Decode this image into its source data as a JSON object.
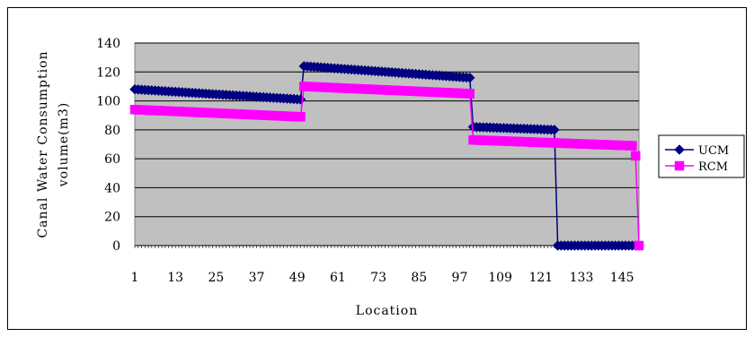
{
  "chart_data": {
    "type": "line",
    "title": "",
    "xlabel": "Location",
    "ylabel_lines": [
      "Canal Water Consumption",
      "volume(m3)"
    ],
    "ylim": [
      0,
      140
    ],
    "y_ticks": [
      0,
      20,
      40,
      60,
      80,
      100,
      120,
      140
    ],
    "xlim": [
      1,
      150
    ],
    "x_ticks": [
      1,
      13,
      25,
      37,
      49,
      61,
      73,
      85,
      97,
      109,
      121,
      133,
      145
    ],
    "grid": "horizontal",
    "plot_background": "#C0C0C0",
    "legend_position": "right",
    "series": [
      {
        "name": "UCM",
        "color": "#000080",
        "marker": "diamond",
        "segments": [
          {
            "x_start": 1,
            "x_end": 50,
            "y_start": 108,
            "y_end": 101
          },
          {
            "x_start": 51,
            "x_end": 100,
            "y_start": 124,
            "y_end": 116
          },
          {
            "x_start": 101,
            "x_end": 125,
            "y_start": 82,
            "y_end": 80
          },
          {
            "x_start": 126,
            "x_end": 150,
            "y_start": 0,
            "y_end": 0
          }
        ]
      },
      {
        "name": "RCM",
        "color": "#FF00FF",
        "marker": "square",
        "segments": [
          {
            "x_start": 1,
            "x_end": 50,
            "y_start": 94,
            "y_end": 89
          },
          {
            "x_start": 51,
            "x_end": 100,
            "y_start": 110,
            "y_end": 105
          },
          {
            "x_start": 101,
            "x_end": 148,
            "y_start": 73,
            "y_end": 69
          },
          {
            "x_start": 149,
            "x_end": 149,
            "y_start": 62,
            "y_end": 62
          },
          {
            "x_start": 150,
            "x_end": 150,
            "y_start": 0,
            "y_end": 0
          }
        ]
      }
    ]
  }
}
